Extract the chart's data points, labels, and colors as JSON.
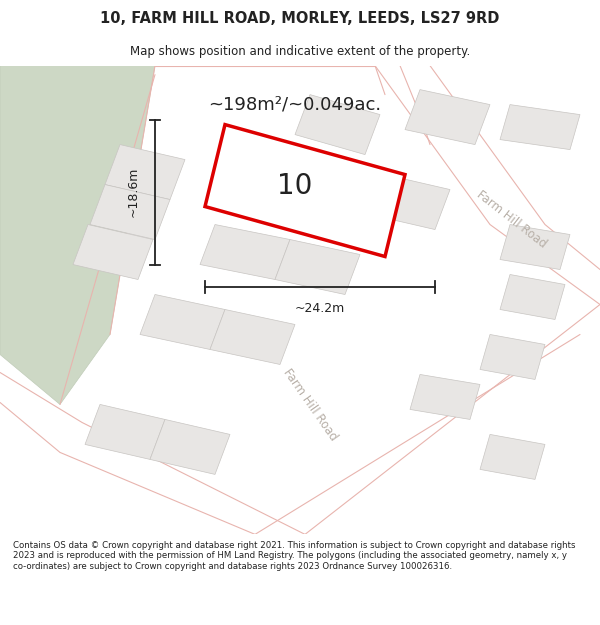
{
  "title": "10, FARM HILL ROAD, MORLEY, LEEDS, LS27 9RD",
  "subtitle": "Map shows position and indicative extent of the property.",
  "area_text": "~198m²/~0.049ac.",
  "width_label": "~24.2m",
  "height_label": "~18.6m",
  "number_label": "10",
  "road_label_upper": "Farm Hill Road",
  "road_label_lower": "Farm Hill Road",
  "footer_text": "Contains OS data © Crown copyright and database right 2021. This information is subject to Crown copyright and database rights 2023 and is reproduced with the permission of HM Land Registry. The polygons (including the associated geometry, namely x, y co-ordinates) are subject to Crown copyright and database rights 2023 Ordnance Survey 100026316.",
  "map_bg": "#f2f0ee",
  "white_bg": "#ffffff",
  "green_color": "#cdd8c5",
  "green_edge": "#c0ccb8",
  "road_fill": "#ffffff",
  "road_edge": "#e8b4ae",
  "building_fill": "#e8e6e4",
  "building_edge": "#c8c5c2",
  "plot_edge": "#dd0000",
  "plot_fill": "#ffffff",
  "dim_color": "#222222",
  "text_color": "#222222",
  "road_text_color": "#b8b0a8",
  "footer_color": "#222222"
}
